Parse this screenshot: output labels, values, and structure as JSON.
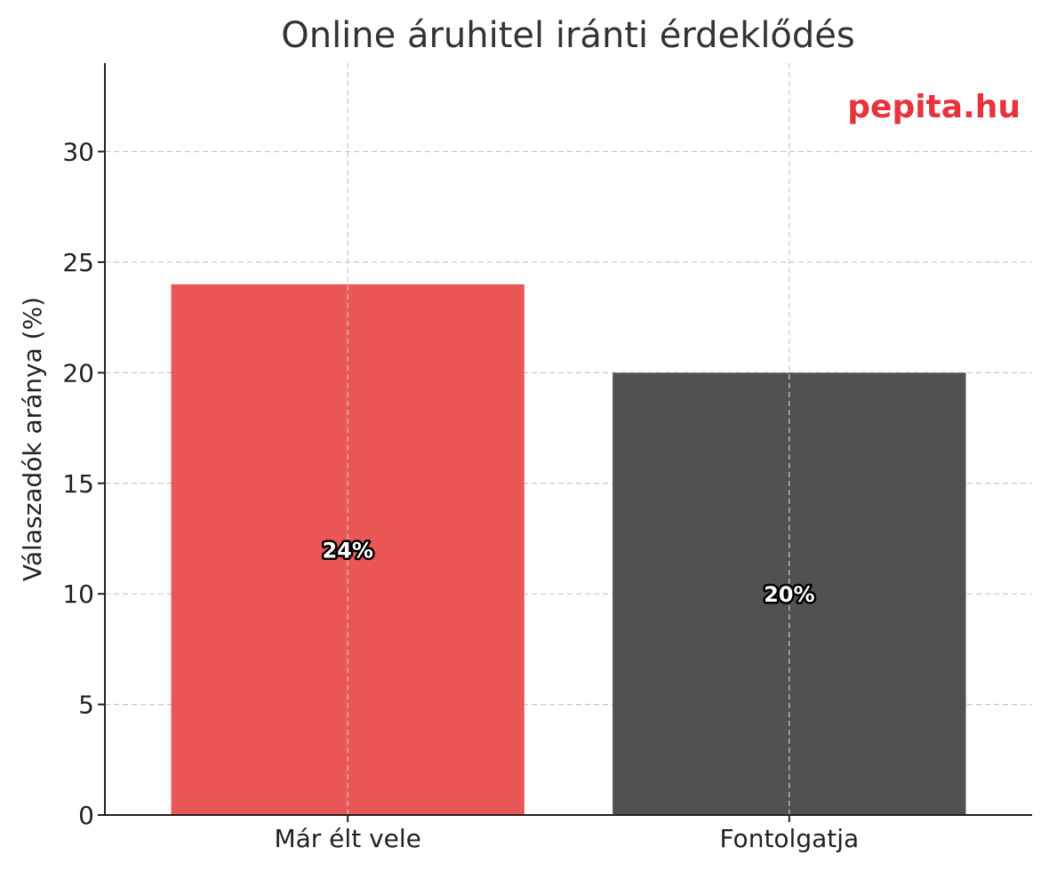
{
  "chart_data": {
    "type": "bar",
    "title": "Online áruhitel iránti érdeklődés",
    "xlabel": "",
    "ylabel": "Válaszadók aránya (%)",
    "categories": [
      "Már élt vele",
      "Fontolgatja"
    ],
    "values": [
      24,
      20
    ],
    "value_labels": [
      "24%",
      "20%"
    ],
    "bar_colors": [
      "#eb5757",
      "#515151"
    ],
    "ylim": [
      0,
      34
    ],
    "yticks": [
      0,
      5,
      10,
      15,
      20,
      25,
      30
    ],
    "grid": true,
    "watermark": "pepita.hu",
    "watermark_color": "#e8323c"
  }
}
